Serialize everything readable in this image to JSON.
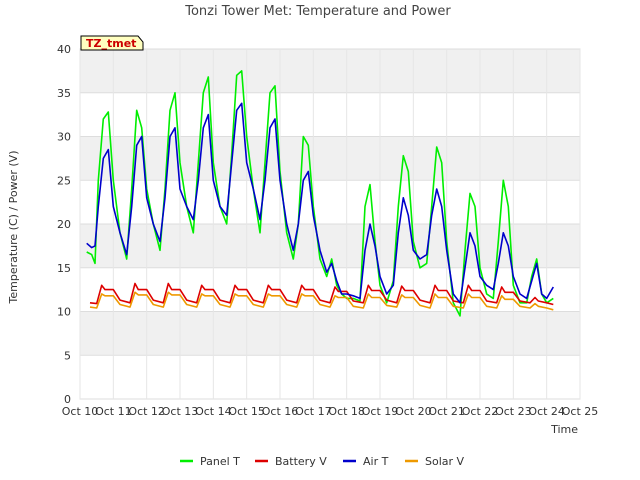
{
  "chart_data": {
    "type": "line",
    "title": "Tonzi Tower Met: Temperature and Power",
    "xlabel": "Time",
    "ylabel": "Temperature (C) / Power (V)",
    "ylim": [
      0,
      40
    ],
    "yticks": [
      0,
      5,
      10,
      15,
      20,
      25,
      30,
      35,
      40
    ],
    "xlim": [
      10,
      25
    ],
    "xticks": [
      10,
      11,
      12,
      13,
      14,
      15,
      16,
      17,
      18,
      19,
      20,
      21,
      22,
      23,
      24,
      25
    ],
    "xtick_labels": [
      "Oct 10",
      "Oct 11",
      "Oct 12",
      "Oct 13",
      "Oct 14",
      "Oct 15",
      "Oct 16",
      "Oct 17",
      "Oct 18",
      "Oct 19",
      "Oct 20",
      "Oct 21",
      "Oct 22",
      "Oct 23",
      "Oct 24",
      "Oct 25"
    ],
    "tag": "TZ_tmet",
    "grid": true,
    "legend_position": "bottom",
    "series": [
      {
        "name": "Panel T",
        "color": "#00ee00",
        "x": [
          10.2,
          10.35,
          10.45,
          10.55,
          10.7,
          10.85,
          11.0,
          11.2,
          11.4,
          11.55,
          11.7,
          11.85,
          12.0,
          12.2,
          12.4,
          12.55,
          12.7,
          12.85,
          13.0,
          13.2,
          13.4,
          13.55,
          13.7,
          13.85,
          14.0,
          14.2,
          14.4,
          14.55,
          14.7,
          14.85,
          15.0,
          15.2,
          15.4,
          15.55,
          15.7,
          15.85,
          16.0,
          16.2,
          16.4,
          16.55,
          16.7,
          16.85,
          17.0,
          17.2,
          17.4,
          17.55,
          17.7,
          17.85,
          18.0,
          18.2,
          18.4,
          18.55,
          18.7,
          18.85,
          19.0,
          19.2,
          19.4,
          19.55,
          19.7,
          19.85,
          20.0,
          20.2,
          20.4,
          20.55,
          20.7,
          20.85,
          21.0,
          21.2,
          21.4,
          21.55,
          21.7,
          21.85,
          22.0,
          22.2,
          22.4,
          22.55,
          22.7,
          22.85,
          23.0,
          23.2,
          23.4,
          23.55,
          23.7,
          23.85,
          24.0,
          24.2
        ],
        "values": [
          16.8,
          16.5,
          15.5,
          25.0,
          32.0,
          32.8,
          25.0,
          19.0,
          16.0,
          24.0,
          33.0,
          31.0,
          24.0,
          20.0,
          17.0,
          24.0,
          33.0,
          35.0,
          27.0,
          22.0,
          19.0,
          27.0,
          35.0,
          36.8,
          27.0,
          22.0,
          20.0,
          28.0,
          37.0,
          37.5,
          30.0,
          24.0,
          19.0,
          27.0,
          35.0,
          35.8,
          26.0,
          19.0,
          16.0,
          20.0,
          30.0,
          29.0,
          22.0,
          16.0,
          14.0,
          16.0,
          13.0,
          12.0,
          11.5,
          11.5,
          11.2,
          22.0,
          24.5,
          18.0,
          13.0,
          11.0,
          13.5,
          22.0,
          27.8,
          26.0,
          18.0,
          15.0,
          15.5,
          22.0,
          28.8,
          27.0,
          18.0,
          11.0,
          9.5,
          17.0,
          23.5,
          22.0,
          15.0,
          12.0,
          11.5,
          18.0,
          25.0,
          22.0,
          13.0,
          11.0,
          11.0,
          14.0,
          16.0,
          12.0,
          11.0,
          11.5
        ]
      },
      {
        "name": "Battery V",
        "color": "#dd0000",
        "x": [
          10.3,
          10.5,
          10.65,
          10.75,
          11.0,
          11.2,
          11.5,
          11.65,
          11.75,
          12.0,
          12.2,
          12.5,
          12.65,
          12.75,
          13.0,
          13.2,
          13.5,
          13.65,
          13.75,
          14.0,
          14.2,
          14.5,
          14.65,
          14.75,
          15.0,
          15.2,
          15.5,
          15.65,
          15.75,
          16.0,
          16.2,
          16.5,
          16.65,
          16.75,
          17.0,
          17.2,
          17.5,
          17.65,
          17.75,
          18.0,
          18.2,
          18.5,
          18.65,
          18.75,
          19.0,
          19.2,
          19.5,
          19.65,
          19.75,
          20.0,
          20.2,
          20.5,
          20.65,
          20.75,
          21.0,
          21.2,
          21.5,
          21.65,
          21.75,
          22.0,
          22.2,
          22.5,
          22.65,
          22.75,
          23.0,
          23.2,
          23.5,
          23.65,
          23.75,
          24.0,
          24.2
        ],
        "values": [
          11.0,
          10.9,
          13.0,
          12.5,
          12.5,
          11.3,
          11.0,
          13.2,
          12.5,
          12.5,
          11.3,
          11.0,
          13.2,
          12.5,
          12.5,
          11.3,
          11.0,
          13.0,
          12.5,
          12.5,
          11.3,
          11.0,
          13.0,
          12.5,
          12.5,
          11.3,
          11.0,
          13.0,
          12.5,
          12.5,
          11.3,
          11.0,
          13.0,
          12.5,
          12.5,
          11.3,
          11.0,
          12.8,
          12.3,
          12.3,
          11.2,
          11.0,
          13.0,
          12.4,
          12.4,
          11.3,
          11.0,
          12.9,
          12.4,
          12.4,
          11.3,
          11.0,
          13.0,
          12.4,
          12.4,
          11.2,
          11.0,
          13.0,
          12.4,
          12.4,
          11.2,
          11.0,
          12.8,
          12.2,
          12.2,
          11.2,
          11.0,
          11.6,
          11.2,
          11.0,
          10.8
        ]
      },
      {
        "name": "Air T",
        "color": "#0000cc",
        "x": [
          10.2,
          10.35,
          10.45,
          10.55,
          10.7,
          10.85,
          11.0,
          11.2,
          11.4,
          11.55,
          11.7,
          11.85,
          12.0,
          12.2,
          12.4,
          12.55,
          12.7,
          12.85,
          13.0,
          13.2,
          13.4,
          13.55,
          13.7,
          13.85,
          14.0,
          14.2,
          14.4,
          14.55,
          14.7,
          14.85,
          15.0,
          15.2,
          15.4,
          15.55,
          15.7,
          15.85,
          16.0,
          16.2,
          16.4,
          16.55,
          16.7,
          16.85,
          17.0,
          17.2,
          17.4,
          17.55,
          17.7,
          17.85,
          18.0,
          18.2,
          18.4,
          18.55,
          18.7,
          18.85,
          19.0,
          19.2,
          19.4,
          19.55,
          19.7,
          19.85,
          20.0,
          20.2,
          20.4,
          20.55,
          20.7,
          20.85,
          21.0,
          21.2,
          21.4,
          21.55,
          21.7,
          21.85,
          22.0,
          22.2,
          22.4,
          22.55,
          22.7,
          22.85,
          23.0,
          23.2,
          23.4,
          23.55,
          23.7,
          23.85,
          24.0,
          24.2
        ],
        "values": [
          17.8,
          17.3,
          17.5,
          22.0,
          27.5,
          28.5,
          22.0,
          19.0,
          16.5,
          22.0,
          29.0,
          30.0,
          23.0,
          20.0,
          18.0,
          23.0,
          30.0,
          31.0,
          24.0,
          22.0,
          20.5,
          25.0,
          31.0,
          32.5,
          25.0,
          22.0,
          21.0,
          27.0,
          33.0,
          33.8,
          27.0,
          24.0,
          20.5,
          25.0,
          31.0,
          32.0,
          25.0,
          20.0,
          17.0,
          20.0,
          25.0,
          26.0,
          21.0,
          17.0,
          14.5,
          15.5,
          13.5,
          12.0,
          12.0,
          11.8,
          11.5,
          17.0,
          20.0,
          17.5,
          14.0,
          12.0,
          13.0,
          19.0,
          23.0,
          21.0,
          17.0,
          16.0,
          16.5,
          21.0,
          24.0,
          22.0,
          17.0,
          12.0,
          11.0,
          15.0,
          19.0,
          17.5,
          14.0,
          13.0,
          12.5,
          15.5,
          19.0,
          17.5,
          14.0,
          12.0,
          11.5,
          13.5,
          15.5,
          12.0,
          11.5,
          12.8
        ]
      },
      {
        "name": "Solar V",
        "color": "#ee9900",
        "x": [
          10.3,
          10.5,
          10.65,
          10.75,
          11.0,
          11.2,
          11.5,
          11.65,
          11.75,
          12.0,
          12.2,
          12.5,
          12.65,
          12.75,
          13.0,
          13.2,
          13.5,
          13.65,
          13.75,
          14.0,
          14.2,
          14.5,
          14.65,
          14.75,
          15.0,
          15.2,
          15.5,
          15.65,
          15.75,
          16.0,
          16.2,
          16.5,
          16.65,
          16.75,
          17.0,
          17.2,
          17.5,
          17.65,
          17.75,
          18.0,
          18.2,
          18.5,
          18.65,
          18.75,
          19.0,
          19.2,
          19.5,
          19.65,
          19.75,
          20.0,
          20.2,
          20.5,
          20.65,
          20.75,
          21.0,
          21.2,
          21.5,
          21.65,
          21.75,
          22.0,
          22.2,
          22.5,
          22.65,
          22.75,
          23.0,
          23.2,
          23.5,
          23.65,
          23.75,
          24.0,
          24.2
        ],
        "values": [
          10.5,
          10.4,
          12.0,
          11.8,
          11.8,
          10.8,
          10.5,
          12.2,
          11.9,
          11.9,
          10.8,
          10.5,
          12.2,
          11.9,
          11.9,
          10.8,
          10.5,
          12.0,
          11.8,
          11.8,
          10.8,
          10.5,
          12.0,
          11.8,
          11.8,
          10.8,
          10.5,
          12.0,
          11.8,
          11.8,
          10.8,
          10.5,
          12.0,
          11.8,
          11.8,
          10.8,
          10.5,
          11.8,
          11.6,
          11.6,
          10.6,
          10.4,
          12.0,
          11.6,
          11.6,
          10.7,
          10.5,
          11.9,
          11.6,
          11.6,
          10.7,
          10.4,
          12.0,
          11.6,
          11.6,
          10.6,
          10.4,
          12.0,
          11.6,
          11.6,
          10.6,
          10.4,
          11.8,
          11.4,
          11.4,
          10.6,
          10.4,
          10.9,
          10.6,
          10.4,
          10.2
        ]
      }
    ]
  }
}
